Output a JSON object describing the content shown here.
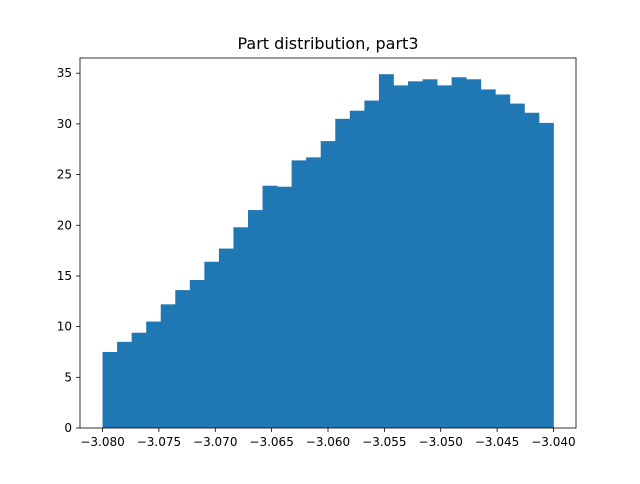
{
  "chart_data": {
    "type": "bar",
    "title": "Part distribution, part3",
    "xlabel": "",
    "ylabel": "",
    "bar_color": "#1f77b4",
    "grid": false,
    "xlim": [
      -3.082,
      -3.038
    ],
    "ylim": [
      0,
      36.5
    ],
    "x_ticks": [
      -3.08,
      -3.075,
      -3.07,
      -3.065,
      -3.06,
      -3.055,
      -3.05,
      -3.045,
      -3.04
    ],
    "x_tick_labels": [
      "−3.080",
      "−3.075",
      "−3.070",
      "−3.065",
      "−3.060",
      "−3.055",
      "−3.050",
      "−3.045",
      "−3.040"
    ],
    "y_ticks": [
      0,
      5,
      10,
      15,
      20,
      25,
      30,
      35
    ],
    "y_tick_labels": [
      "0",
      "5",
      "10",
      "15",
      "20",
      "25",
      "30",
      "35"
    ],
    "bin_start": -3.08,
    "bin_end": -3.04,
    "values": [
      7.5,
      8.5,
      9.4,
      10.5,
      12.2,
      13.6,
      14.6,
      16.4,
      17.7,
      19.8,
      21.5,
      23.9,
      23.8,
      26.4,
      26.7,
      28.3,
      30.5,
      31.3,
      32.3,
      34.9,
      33.8,
      34.2,
      34.4,
      33.8,
      34.6,
      34.4,
      33.4,
      32.9,
      32.0,
      31.1,
      30.1
    ]
  }
}
